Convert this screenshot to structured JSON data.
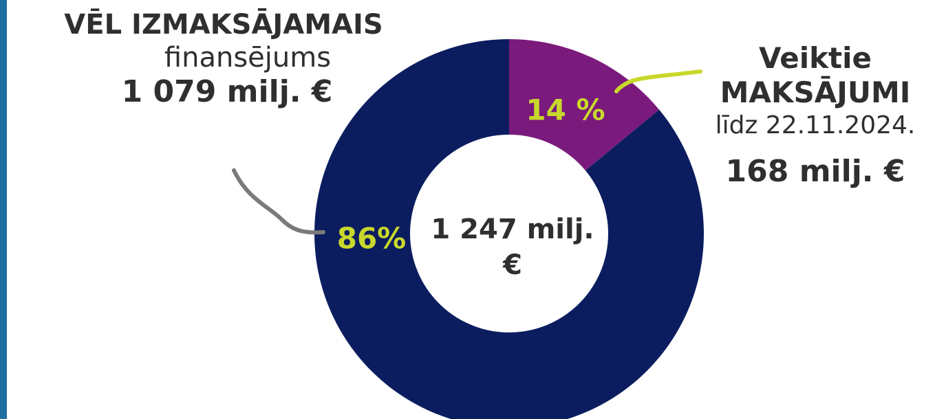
{
  "chart_data": {
    "type": "pie",
    "donut": true,
    "values": [
      14,
      86
    ],
    "value_labels": [
      "14 %",
      "86%"
    ],
    "colors": [
      "#7b1a7d",
      "#0b1d5f"
    ],
    "center_label": "1 247 milj. €",
    "annotations": {
      "left": [
        "VĒL IZMAKSĀJAMAIS",
        "finansējums",
        "1 079 milj. €"
      ],
      "right": [
        "Veiktie",
        "MAKSĀJUMI",
        "līdz 22.11.2024.",
        "168 milj. €"
      ]
    }
  }
}
